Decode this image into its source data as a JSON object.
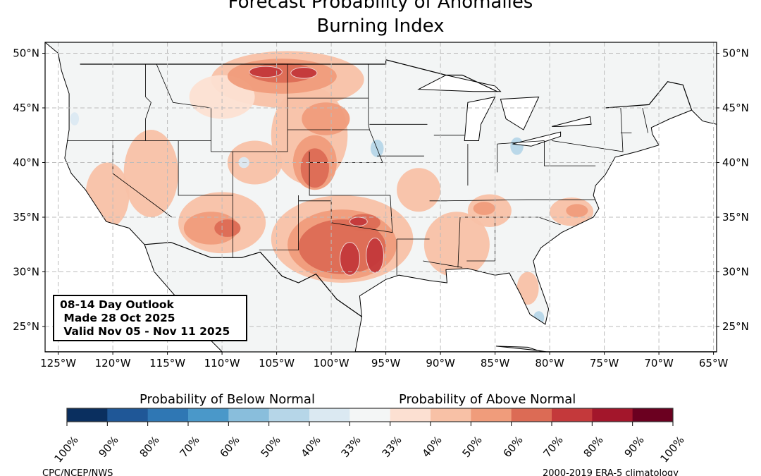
{
  "title": {
    "line1": "Forecast Probability of Anomalies",
    "line2": "Burning Index"
  },
  "info_box": {
    "line1": "08-14 Day Outlook",
    "line2": " Made 28 Oct 2025",
    "line3": " Valid Nov 05 - Nov 11 2025"
  },
  "lat_labels": [
    "50°N",
    "45°N",
    "40°N",
    "35°N",
    "30°N",
    "25°N"
  ],
  "lon_labels": [
    "125°W",
    "120°W",
    "115°W",
    "110°W",
    "105°W",
    "100°W",
    "95°W",
    "90°W",
    "85°W",
    "80°W",
    "75°W",
    "70°W",
    "65°W"
  ],
  "colorbar": {
    "below_title": "Probability of Below Normal",
    "above_title": "Probability of Above Normal",
    "ticks": [
      "100%",
      "90%",
      "80%",
      "70%",
      "60%",
      "50%",
      "40%",
      "33%",
      "33%",
      "40%",
      "50%",
      "60%",
      "70%",
      "80%",
      "90%",
      "100%"
    ],
    "colors": [
      "#0a2f5f",
      "#1f5797",
      "#2f77b4",
      "#4a98c9",
      "#89bedc",
      "#b6d6e8",
      "#dbe9f2",
      "#f4f6f6",
      "#fce0d2",
      "#f8c1a6",
      "#f09c7b",
      "#dc6b55",
      "#c4393b",
      "#a3162b",
      "#6b0020"
    ]
  },
  "colors": {
    "land": "#f3f5f5",
    "ocean": "#ffffff",
    "border": "#000000",
    "state": "#888888"
  },
  "footer": {
    "left": "CPC/NCEP/NWS",
    "right": "2000-2019 ERA-5 climatology"
  }
}
